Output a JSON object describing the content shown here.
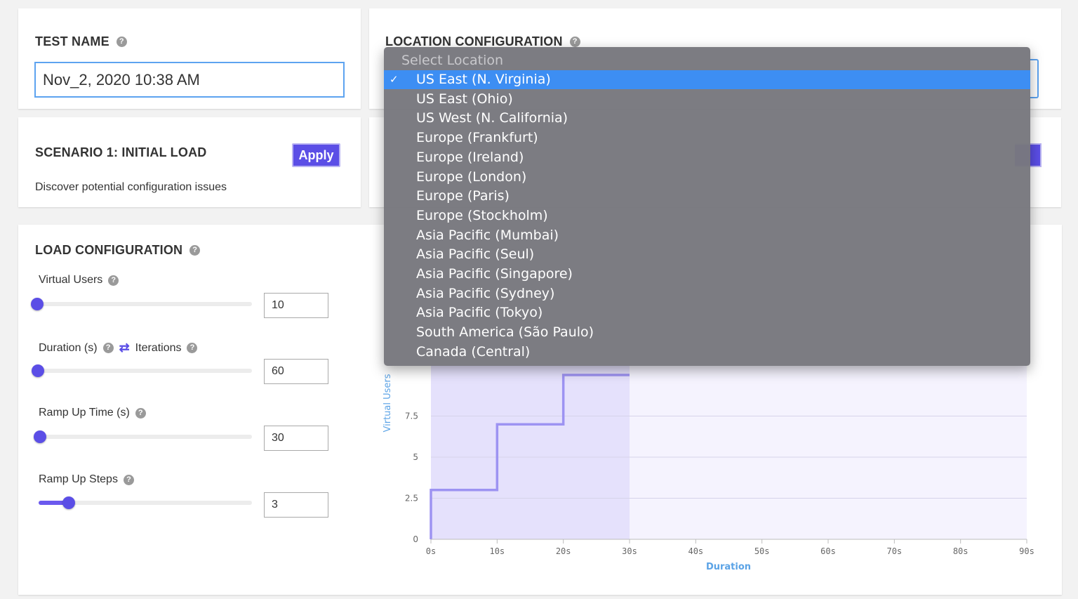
{
  "test_name": {
    "title": "TEST NAME",
    "value": "Nov_2, 2020 10:38 AM"
  },
  "location": {
    "title": "LOCATION CONFIGURATION",
    "placeholder": "Select Location",
    "options": [
      "US East (N. Virginia)",
      "US East (Ohio)",
      "US West (N. California)",
      "Europe (Frankfurt)",
      "Europe (Ireland)",
      "Europe (London)",
      "Europe (Paris)",
      "Europe (Stockholm)",
      "Asia Pacific (Mumbai)",
      "Asia Pacific (Seul)",
      "Asia Pacific (Singapore)",
      "Asia Pacific (Sydney)",
      "Asia Pacific (Tokyo)",
      "South America (São Paulo)",
      "Canada (Central)"
    ],
    "selected": "US East (N. Virginia)",
    "check_mark": "✓"
  },
  "scenario": {
    "title": "SCENARIO 1: INITIAL LOAD",
    "apply_label": "Apply",
    "description": "Discover potential configuration issues"
  },
  "load_config": {
    "title": "LOAD CONFIGURATION",
    "virtual_users": {
      "label": "Virtual Users",
      "value": "10",
      "slider_fraction": 0.0
    },
    "duration": {
      "label": "Duration (s)",
      "alt_label": "Iterations",
      "value": "60",
      "slider_fraction": 0.0
    },
    "ramp_up_time": {
      "label": "Ramp Up Time (s)",
      "value": "30",
      "slider_fraction": 0.0
    },
    "ramp_up_steps": {
      "label": "Ramp Up Steps",
      "value": "3",
      "slider_fraction": 0.14
    }
  },
  "icons": {
    "help": "question-circle-icon",
    "swap": "swap-arrows-icon",
    "check": "check-icon"
  },
  "colors": {
    "accent": "#5b4ee6",
    "dropdown_bg": "#78787e",
    "dropdown_selected": "#3d8ef3",
    "axis_label": "#5ba3e6"
  },
  "chart_data": {
    "type": "line",
    "xlabel": "Duration",
    "ylabel": "Virtual Users",
    "x_ticks": [
      "0s",
      "10s",
      "20s",
      "30s",
      "40s",
      "50s",
      "60s",
      "70s",
      "80s",
      "90s"
    ],
    "y_ticks": [
      "0",
      "2.5",
      "5",
      "7.5"
    ],
    "xlim": [
      0,
      90
    ],
    "series": [
      {
        "x": [
          0,
          0,
          10,
          10,
          20,
          20,
          30
        ],
        "y": [
          0,
          3,
          3,
          7,
          7,
          10,
          10
        ]
      }
    ],
    "ramp_region": [
      0,
      30
    ],
    "grid": true
  }
}
